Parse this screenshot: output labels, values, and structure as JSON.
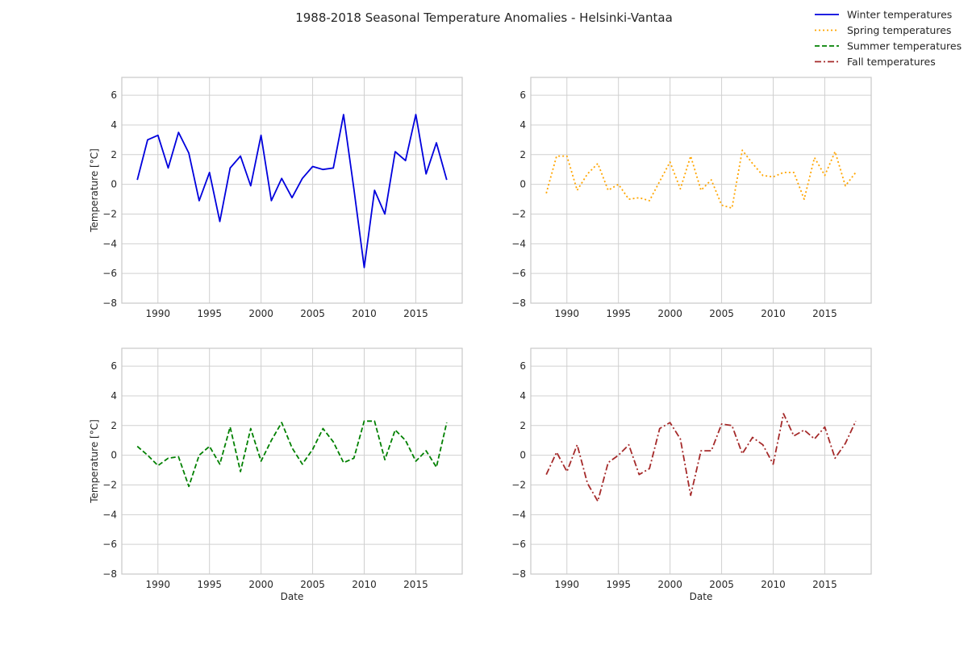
{
  "figure": {
    "title": "1988-2018 Seasonal Temperature Anomalies - Helsinki-Vantaa"
  },
  "legend": {
    "placement": "top-right",
    "entries": [
      {
        "label": "Winter temperatures",
        "color": "#0000dd",
        "style": "solid"
      },
      {
        "label": "Spring temperatures",
        "color": "#ffa500",
        "style": "dotted"
      },
      {
        "label": "Summer temperatures",
        "color": "#008000",
        "style": "dashed"
      },
      {
        "label": "Fall temperatures",
        "color": "#a52a2a",
        "style": "dashdot"
      }
    ]
  },
  "chart_data": [
    {
      "type": "line",
      "title": "",
      "xlabel": "",
      "ylabel": "Temperature [°C]",
      "xlim": [
        1986.5,
        2019.5
      ],
      "ylim": [
        -8,
        7.2
      ],
      "xticks": [
        1990,
        1995,
        2000,
        2005,
        2010,
        2015
      ],
      "yticks": [
        -8,
        -6,
        -4,
        -2,
        0,
        2,
        4,
        6
      ],
      "grid": true,
      "series": [
        {
          "name": "Winter temperatures",
          "color": "#0000dd",
          "style": "solid",
          "x": [
            1988,
            1989,
            1990,
            1991,
            1992,
            1993,
            1994,
            1995,
            1996,
            1997,
            1998,
            1999,
            2000,
            2001,
            2002,
            2003,
            2004,
            2005,
            2006,
            2007,
            2008,
            2009,
            2010,
            2011,
            2012,
            2013,
            2014,
            2015,
            2016,
            2017,
            2018
          ],
          "y": [
            0.3,
            3.0,
            3.3,
            1.1,
            3.5,
            2.1,
            -1.1,
            0.8,
            -2.5,
            1.1,
            1.9,
            -0.1,
            3.3,
            -1.1,
            0.4,
            -0.9,
            0.4,
            1.2,
            1.0,
            1.1,
            4.7,
            -0.3,
            -5.6,
            -0.4,
            -2.0,
            2.2,
            1.6,
            4.7,
            0.7,
            2.8,
            0.3
          ]
        }
      ]
    },
    {
      "type": "line",
      "title": "",
      "xlabel": "",
      "ylabel": "",
      "xlim": [
        1986.5,
        2019.5
      ],
      "ylim": [
        -8,
        7.2
      ],
      "xticks": [
        1990,
        1995,
        2000,
        2005,
        2010,
        2015
      ],
      "yticks": [
        -8,
        -6,
        -4,
        -2,
        0,
        2,
        4,
        6
      ],
      "grid": true,
      "series": [
        {
          "name": "Spring temperatures",
          "color": "#ffa500",
          "style": "dotted",
          "x": [
            1988,
            1989,
            1990,
            1991,
            1992,
            1993,
            1994,
            1995,
            1996,
            1997,
            1998,
            1999,
            2000,
            2001,
            2002,
            2003,
            2004,
            2005,
            2006,
            2007,
            2008,
            2009,
            2010,
            2011,
            2012,
            2013,
            2014,
            2015,
            2016,
            2017,
            2018
          ],
          "y": [
            -0.6,
            1.9,
            1.9,
            -0.4,
            0.7,
            1.4,
            -0.4,
            0.0,
            -1.0,
            -0.9,
            -1.1,
            0.2,
            1.5,
            -0.3,
            1.9,
            -0.4,
            0.3,
            -1.4,
            -1.6,
            2.3,
            1.4,
            0.6,
            0.5,
            0.8,
            0.8,
            -1.0,
            1.8,
            0.6,
            2.2,
            -0.1,
            0.8
          ]
        }
      ]
    },
    {
      "type": "line",
      "title": "",
      "xlabel": "Date",
      "ylabel": "Temperature [°C]",
      "xlim": [
        1986.5,
        2019.5
      ],
      "ylim": [
        -8,
        7.2
      ],
      "xticks": [
        1990,
        1995,
        2000,
        2005,
        2010,
        2015
      ],
      "yticks": [
        -8,
        -6,
        -4,
        -2,
        0,
        2,
        4,
        6
      ],
      "grid": true,
      "series": [
        {
          "name": "Summer temperatures",
          "color": "#008000",
          "style": "dashed",
          "x": [
            1988,
            1989,
            1990,
            1991,
            1992,
            1993,
            1994,
            1995,
            1996,
            1997,
            1998,
            1999,
            2000,
            2001,
            2002,
            2003,
            2004,
            2005,
            2006,
            2007,
            2008,
            2009,
            2010,
            2011,
            2012,
            2013,
            2014,
            2015,
            2016,
            2017,
            2018
          ],
          "y": [
            0.6,
            0.0,
            -0.7,
            -0.2,
            -0.1,
            -2.1,
            0.0,
            0.6,
            -0.6,
            1.9,
            -1.1,
            1.8,
            -0.4,
            1.0,
            2.2,
            0.5,
            -0.6,
            0.4,
            1.8,
            0.9,
            -0.5,
            -0.2,
            2.3,
            2.3,
            -0.3,
            1.7,
            1.0,
            -0.4,
            0.3,
            -0.8,
            2.2
          ]
        }
      ]
    },
    {
      "type": "line",
      "title": "",
      "xlabel": "Date",
      "ylabel": "",
      "xlim": [
        1986.5,
        2019.5
      ],
      "ylim": [
        -8,
        7.2
      ],
      "xticks": [
        1990,
        1995,
        2000,
        2005,
        2010,
        2015
      ],
      "yticks": [
        -8,
        -6,
        -4,
        -2,
        0,
        2,
        4,
        6
      ],
      "grid": true,
      "series": [
        {
          "name": "Fall temperatures",
          "color": "#a52a2a",
          "style": "dashdot",
          "x": [
            1988,
            1989,
            1990,
            1991,
            1992,
            1993,
            1994,
            1995,
            1996,
            1997,
            1998,
            1999,
            2000,
            2001,
            2002,
            2003,
            2004,
            2005,
            2006,
            2007,
            2008,
            2009,
            2010,
            2011,
            2012,
            2013,
            2014,
            2015,
            2016,
            2017,
            2018
          ],
          "y": [
            -1.3,
            0.2,
            -1.1,
            0.7,
            -1.9,
            -3.1,
            -0.5,
            0.0,
            0.7,
            -1.3,
            -0.9,
            1.8,
            2.2,
            1.1,
            -2.7,
            0.3,
            0.3,
            2.1,
            2.0,
            0.1,
            1.2,
            0.7,
            -0.6,
            2.8,
            1.3,
            1.7,
            1.1,
            1.9,
            -0.2,
            0.8,
            2.3
          ]
        }
      ]
    }
  ]
}
